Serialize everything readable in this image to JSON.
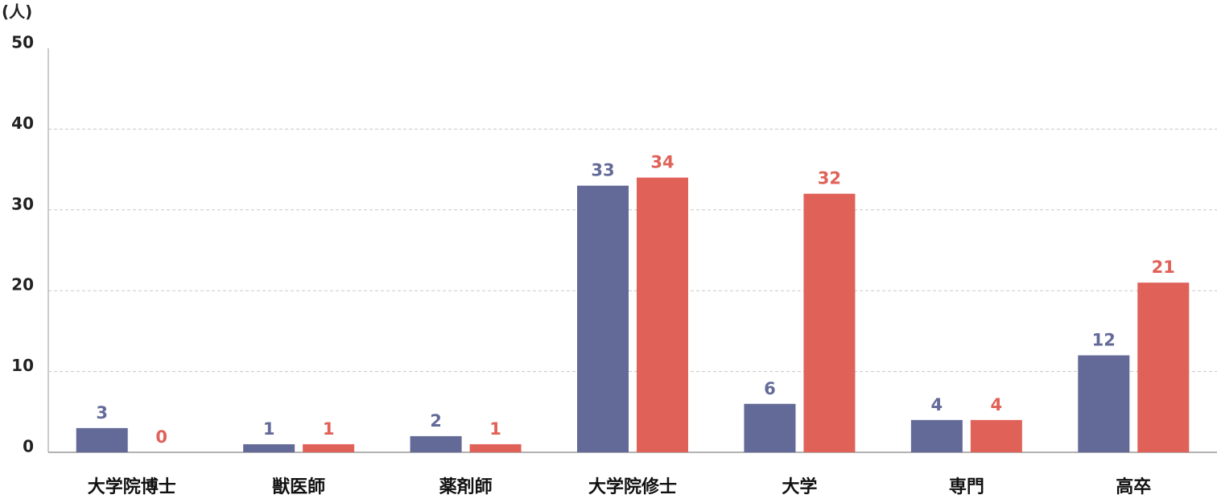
{
  "chart_data": {
    "type": "bar",
    "ylabel": "(人)",
    "categories": [
      "大学院博士",
      "獣医師",
      "薬剤師",
      "大学院修士",
      "大学",
      "専門",
      "高卒"
    ],
    "series": [
      {
        "color": "#636a98",
        "values": [
          3,
          1,
          2,
          33,
          6,
          4,
          12
        ]
      },
      {
        "color": "#e06157",
        "values": [
          0,
          1,
          1,
          34,
          32,
          4,
          21
        ]
      }
    ],
    "ylim": [
      0,
      50
    ],
    "yticks": [
      0,
      10,
      20,
      30,
      40,
      50
    ],
    "grid": true
  }
}
